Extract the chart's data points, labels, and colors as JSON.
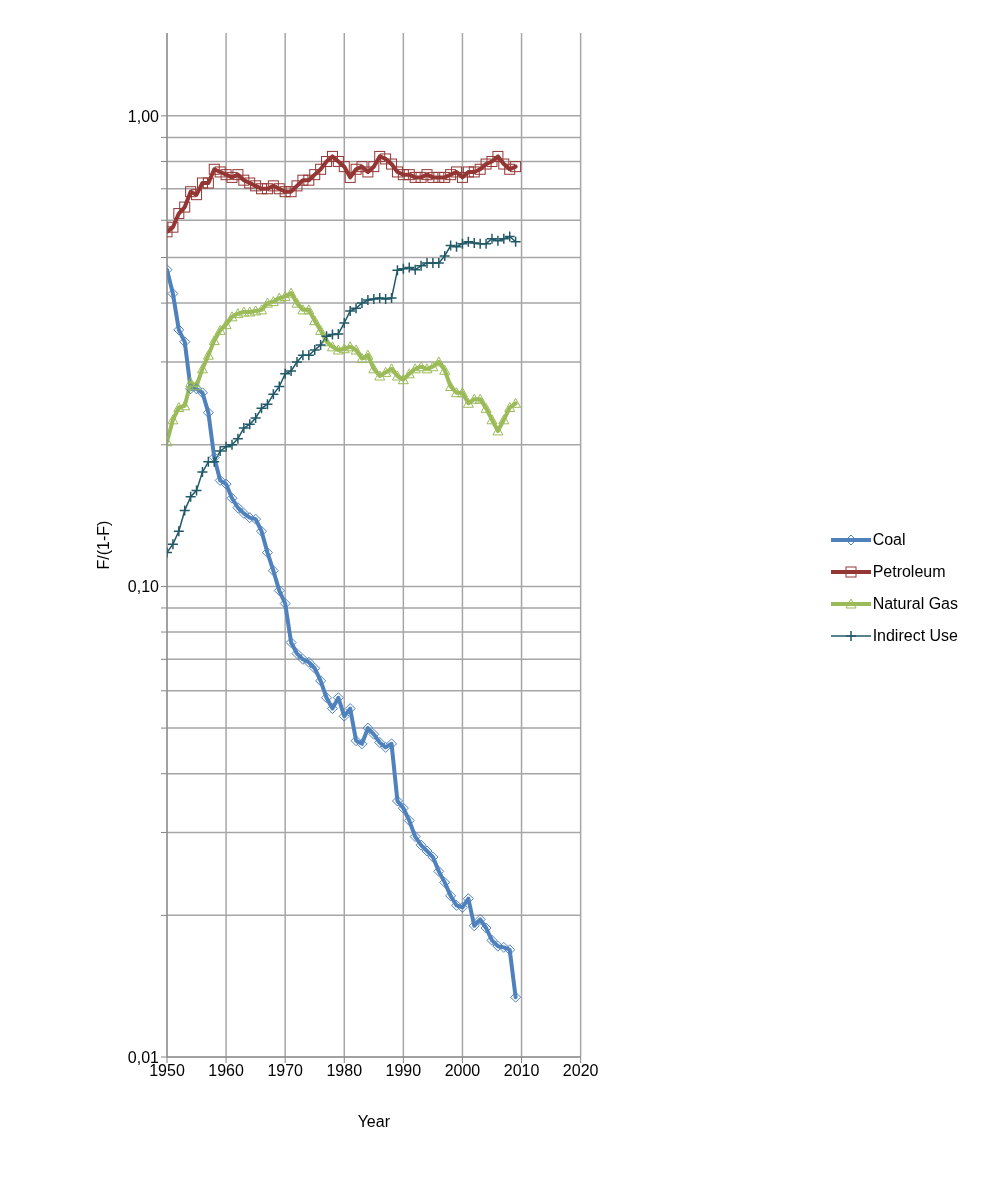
{
  "chart_data": {
    "type": "line",
    "xlabel": "Year",
    "ylabel": "F/(1-F)",
    "log": "y",
    "grid": true,
    "legend": "right",
    "line_style": "solid",
    "xlim": [
      1950,
      2020
    ],
    "xticks": [
      1950,
      1960,
      1970,
      1980,
      1990,
      2000,
      2010,
      2020
    ],
    "ylim": [
      0.01,
      1.5
    ],
    "yticks": [
      {
        "value": 0.01,
        "label": "0,01"
      },
      {
        "value": 0.02,
        "label": null
      },
      {
        "value": 0.03,
        "label": null
      },
      {
        "value": 0.04,
        "label": null
      },
      {
        "value": 0.05,
        "label": null
      },
      {
        "value": 0.06,
        "label": null
      },
      {
        "value": 0.07,
        "label": null
      },
      {
        "value": 0.08,
        "label": null
      },
      {
        "value": 0.09,
        "label": null
      },
      {
        "value": 0.1,
        "label": "0,10"
      },
      {
        "value": 0.2,
        "label": null
      },
      {
        "value": 0.3,
        "label": null
      },
      {
        "value": 0.4,
        "label": null
      },
      {
        "value": 0.5,
        "label": null
      },
      {
        "value": 0.6,
        "label": null
      },
      {
        "value": 0.7,
        "label": null
      },
      {
        "value": 0.8,
        "label": null
      },
      {
        "value": 0.9,
        "label": null
      },
      {
        "value": 1,
        "label": "1,00"
      }
    ],
    "x": [
      1950,
      1951,
      1952,
      1953,
      1954,
      1955,
      1956,
      1957,
      1958,
      1959,
      1960,
      1961,
      1962,
      1963,
      1964,
      1965,
      1966,
      1967,
      1968,
      1969,
      1970,
      1971,
      1972,
      1973,
      1974,
      1975,
      1976,
      1977,
      1978,
      1979,
      1980,
      1981,
      1982,
      1983,
      1984,
      1985,
      1986,
      1987,
      1988,
      1989,
      1990,
      1991,
      1992,
      1993,
      1994,
      1995,
      1996,
      1997,
      1998,
      1999,
      2000,
      2001,
      2002,
      2003,
      2004,
      2005,
      2006,
      2007,
      2008,
      2009
    ],
    "series": [
      {
        "name": "Coal",
        "color": "#4f81bd",
        "marker": "diamond",
        "values": [
          0.471,
          0.419,
          0.351,
          0.331,
          0.263,
          0.263,
          0.258,
          0.234,
          0.188,
          0.168,
          0.165,
          0.154,
          0.147,
          0.143,
          0.14,
          0.139,
          0.131,
          0.118,
          0.108,
          0.098,
          0.092,
          0.076,
          0.072,
          0.07,
          0.069,
          0.067,
          0.063,
          0.058,
          0.055,
          0.058,
          0.053,
          0.055,
          0.047,
          0.0463,
          0.05,
          0.0485,
          0.0466,
          0.0455,
          0.0463,
          0.035,
          0.0338,
          0.0318,
          0.0294,
          0.0282,
          0.0274,
          0.0266,
          0.0248,
          0.0235,
          0.022,
          0.021,
          0.0208,
          0.0217,
          0.019,
          0.0196,
          0.0188,
          0.0177,
          0.0172,
          0.0171,
          0.0169,
          0.0134
        ]
      },
      {
        "name": "Petroleum",
        "color": "#943634",
        "marker": "square",
        "values": [
          0.567,
          0.58,
          0.62,
          0.64,
          0.69,
          0.68,
          0.72,
          0.72,
          0.77,
          0.76,
          0.75,
          0.74,
          0.75,
          0.73,
          0.72,
          0.71,
          0.7,
          0.7,
          0.71,
          0.7,
          0.69,
          0.69,
          0.71,
          0.73,
          0.73,
          0.75,
          0.77,
          0.8,
          0.82,
          0.8,
          0.78,
          0.74,
          0.77,
          0.78,
          0.76,
          0.78,
          0.82,
          0.81,
          0.79,
          0.76,
          0.75,
          0.75,
          0.74,
          0.74,
          0.75,
          0.74,
          0.74,
          0.74,
          0.75,
          0.76,
          0.74,
          0.76,
          0.76,
          0.77,
          0.79,
          0.8,
          0.82,
          0.79,
          0.77,
          0.78
        ]
      },
      {
        "name": "Natural Gas",
        "color": "#9bbb59",
        "marker": "triangle",
        "values": [
          0.203,
          0.226,
          0.24,
          0.242,
          0.271,
          0.267,
          0.29,
          0.31,
          0.333,
          0.35,
          0.36,
          0.374,
          0.38,
          0.383,
          0.383,
          0.385,
          0.387,
          0.4,
          0.403,
          0.41,
          0.413,
          0.42,
          0.4,
          0.387,
          0.387,
          0.367,
          0.35,
          0.331,
          0.323,
          0.318,
          0.32,
          0.323,
          0.318,
          0.305,
          0.31,
          0.29,
          0.28,
          0.285,
          0.29,
          0.28,
          0.275,
          0.283,
          0.29,
          0.293,
          0.29,
          0.293,
          0.3,
          0.288,
          0.266,
          0.258,
          0.258,
          0.245,
          0.25,
          0.25,
          0.239,
          0.226,
          0.214,
          0.226,
          0.24,
          0.245
        ]
      },
      {
        "name": "Indirect Use",
        "color": "#215968",
        "marker": "cross",
        "values": [
          0.118,
          0.123,
          0.131,
          0.145,
          0.155,
          0.16,
          0.175,
          0.184,
          0.184,
          0.194,
          0.198,
          0.2,
          0.206,
          0.217,
          0.221,
          0.228,
          0.239,
          0.244,
          0.256,
          0.266,
          0.283,
          0.287,
          0.3,
          0.31,
          0.31,
          0.318,
          0.326,
          0.34,
          0.343,
          0.344,
          0.363,
          0.385,
          0.39,
          0.4,
          0.406,
          0.408,
          0.41,
          0.408,
          0.41,
          0.47,
          0.473,
          0.476,
          0.471,
          0.48,
          0.487,
          0.487,
          0.487,
          0.504,
          0.53,
          0.527,
          0.535,
          0.54,
          0.537,
          0.535,
          0.535,
          0.548,
          0.543,
          0.548,
          0.554,
          0.54
        ]
      }
    ]
  }
}
